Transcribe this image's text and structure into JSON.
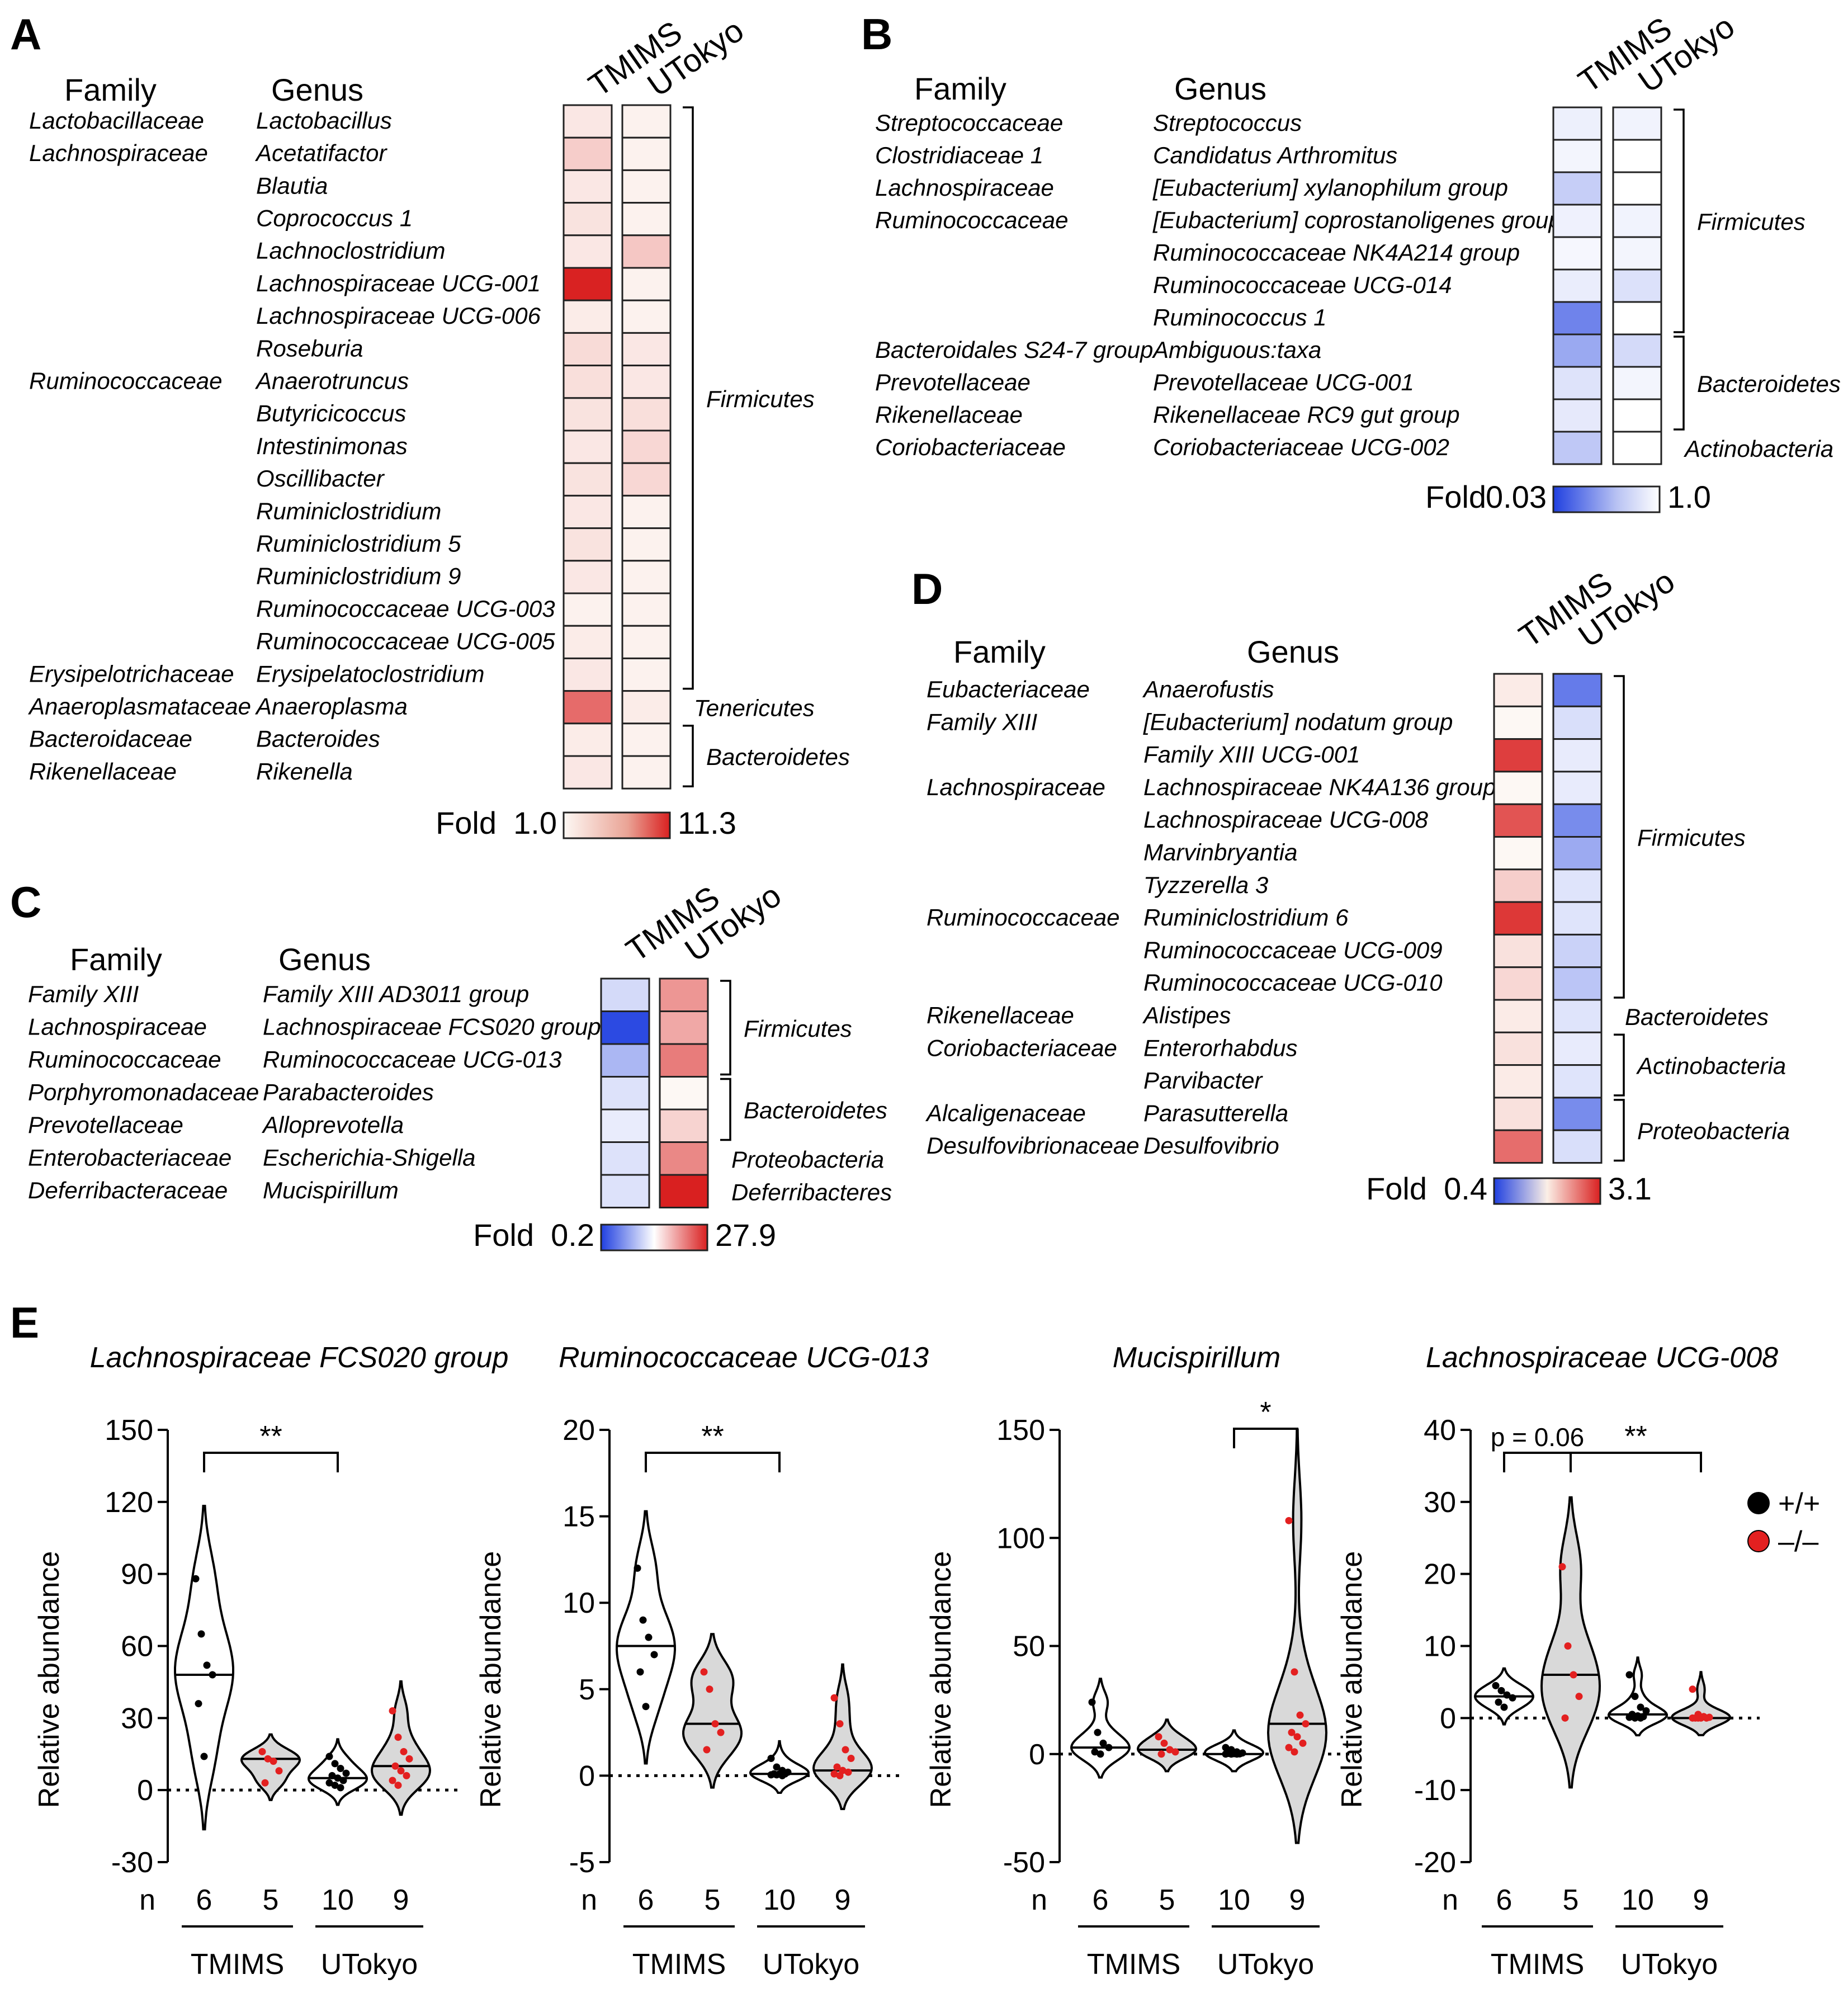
{
  "panels": {
    "A": {
      "letter": "A",
      "family_header": "Family",
      "genus_header": "Genus",
      "columns": [
        "TMIMS",
        "UTokyo"
      ],
      "rows": [
        {
          "family": "Lactobacillaceae",
          "genus": "Lactobacillus",
          "values": [
            1.15,
            1.05
          ]
        },
        {
          "family": "Lachnospiraceae",
          "genus": "Acetatifactor",
          "values": [
            1.5,
            1.05
          ]
        },
        {
          "family": "",
          "genus": "Blautia",
          "values": [
            1.15,
            1.05
          ]
        },
        {
          "family": "",
          "genus": "Coprococcus 1",
          "values": [
            1.2,
            1.05
          ]
        },
        {
          "family": "",
          "genus": "Lachnoclostridium",
          "values": [
            1.15,
            1.6
          ]
        },
        {
          "family": "",
          "genus": "Lachnospiraceae UCG-001",
          "values": [
            11.0,
            1.05
          ]
        },
        {
          "family": "",
          "genus": "Lachnospiraceae UCG-006",
          "values": [
            1.1,
            1.05
          ]
        },
        {
          "family": "",
          "genus": "Roseburia",
          "values": [
            1.3,
            1.15
          ]
        },
        {
          "family": "Ruminococcaceae",
          "genus": "Anaerotruncus",
          "values": [
            1.25,
            1.15
          ]
        },
        {
          "family": "",
          "genus": "Butyricicoccus",
          "values": [
            1.2,
            1.25
          ]
        },
        {
          "family": "",
          "genus": "Intestinimonas",
          "values": [
            1.15,
            1.35
          ]
        },
        {
          "family": "",
          "genus": "Oscillibacter",
          "values": [
            1.2,
            1.35
          ]
        },
        {
          "family": "",
          "genus": "Ruminiclostridium",
          "values": [
            1.15,
            1.05
          ]
        },
        {
          "family": "",
          "genus": "Ruminiclostridium 5",
          "values": [
            1.2,
            1.05
          ]
        },
        {
          "family": "",
          "genus": "Ruminiclostridium 9",
          "values": [
            1.15,
            1.05
          ]
        },
        {
          "family": "",
          "genus": "Ruminococcaceae UCG-003",
          "values": [
            1.05,
            1.05
          ]
        },
        {
          "family": "",
          "genus": "Ruminococcaceae UCG-005",
          "values": [
            1.1,
            1.05
          ]
        },
        {
          "family": "Erysipelotrichaceae",
          "genus": "Erysipelatoclostridium",
          "values": [
            1.15,
            1.05
          ]
        },
        {
          "family": "Anaeroplasmataceae",
          "genus": "Anaeroplasma",
          "values": [
            4.5,
            1.1
          ]
        },
        {
          "family": "Bacteroidaceae",
          "genus": "Bacteroides",
          "values": [
            1.1,
            1.05
          ]
        },
        {
          "family": "Rikenellaceae",
          "genus": "Rikenella",
          "values": [
            1.15,
            1.05
          ]
        }
      ],
      "phyla": [
        "Firmicutes",
        "Tenericutes",
        "Bacteroidetes"
      ],
      "legend": {
        "label": "Fold",
        "min": "1.0",
        "max": "11.3"
      }
    },
    "B": {
      "letter": "B",
      "family_header": "Family",
      "genus_header": "Genus",
      "columns": [
        "TMIMS",
        "UTokyo"
      ],
      "rows": [
        {
          "family": "Streptococcaceae",
          "genus": "Streptococcus",
          "values": [
            0.88,
            0.92
          ]
        },
        {
          "family": "Clostridiaceae 1",
          "genus": "Candidatus Arthromitus",
          "values": [
            0.95,
            1.0
          ]
        },
        {
          "family": "Lachnospiraceae",
          "genus": "[Eubacterium] xylanophilum group",
          "values": [
            0.5,
            1.0
          ]
        },
        {
          "family": "Ruminococcaceae",
          "genus": "[Eubacterium] coprostanoligenes group",
          "values": [
            0.9,
            0.92
          ]
        },
        {
          "family": "",
          "genus": "Ruminococcaceae NK4A214 group",
          "values": [
            0.98,
            0.95
          ]
        },
        {
          "family": "",
          "genus": "Ruminococcaceae UCG-014",
          "values": [
            0.85,
            0.7
          ]
        },
        {
          "family": "",
          "genus": "Ruminococcus 1",
          "values": [
            0.12,
            1.0
          ]
        },
        {
          "family": "Bacteroidales S24-7 group",
          "genus": "Ambiguous:taxa",
          "values": [
            0.25,
            0.62
          ]
        },
        {
          "family": "Prevotellaceae",
          "genus": "Prevotellaceae UCG-001",
          "values": [
            0.72,
            0.95
          ]
        },
        {
          "family": "Rikenellaceae",
          "genus": "Rikenellaceae RC9 gut group",
          "values": [
            0.8,
            1.0
          ]
        },
        {
          "family": "Coriobacteriaceae",
          "genus": "Coriobacteriaceae UCG-002",
          "values": [
            0.45,
            1.0
          ]
        }
      ],
      "phyla": [
        "Firmicutes",
        "Bacteroidetes",
        "Actinobacteria"
      ],
      "legend": {
        "label": "Fold",
        "min": "0.03",
        "max": "1.0"
      }
    },
    "C": {
      "letter": "C",
      "family_header": "Family",
      "genus_header": "Genus",
      "columns": [
        "TMIMS",
        "UTokyo"
      ],
      "rows": [
        {
          "family": "Family XIII",
          "genus": "Family XIII AD3011 group",
          "values": [
            0.8,
            4.0
          ]
        },
        {
          "family": "Lachnospiraceae",
          "genus": "Lachnospiraceae FCS020 group",
          "values": [
            0.22,
            3.0
          ]
        },
        {
          "family": "Ruminococcaceae",
          "genus": "Ruminococcaceae UCG-013",
          "values": [
            0.6,
            6.0
          ]
        },
        {
          "family": "Porphyromonadaceae",
          "genus": "Parabacteroides",
          "values": [
            0.85,
            1.0
          ]
        },
        {
          "family": "Prevotellaceae",
          "genus": "Alloprevotella",
          "values": [
            0.92,
            1.6
          ]
        },
        {
          "family": "Enterobacteriaceae",
          "genus": "Escherichia-Shigella",
          "values": [
            0.85,
            5.0
          ]
        },
        {
          "family": "Deferribacteraceae",
          "genus": "Mucispirillum",
          "values": [
            0.85,
            27.9
          ]
        }
      ],
      "phyla": [
        "Firmicutes",
        "Bacteroidetes",
        "Proteobacteria",
        "Deferribacteres"
      ],
      "legend": {
        "label": "Fold",
        "min": "0.2",
        "max": "27.9"
      }
    },
    "D": {
      "letter": "D",
      "family_header": "Family",
      "genus_header": "Genus",
      "columns": [
        "TMIMS",
        "UTokyo"
      ],
      "rows": [
        {
          "family": "Eubacteriaceae",
          "genus": "Anaerofustis",
          "values": [
            1.05,
            0.55
          ]
        },
        {
          "family": "Family XIII",
          "genus": "[Eubacterium] nodatum group",
          "values": [
            1.0,
            0.9
          ]
        },
        {
          "family": "",
          "genus": "Family XIII UCG-001",
          "values": [
            2.6,
            0.95
          ]
        },
        {
          "family": "Lachnospiraceae",
          "genus": "Lachnospiraceae NK4A136 group",
          "values": [
            1.0,
            0.95
          ]
        },
        {
          "family": "",
          "genus": "Lachnospiraceae UCG-008",
          "values": [
            2.3,
            0.6
          ]
        },
        {
          "family": "",
          "genus": "Marvinbryantia",
          "values": [
            1.0,
            0.7
          ]
        },
        {
          "family": "",
          "genus": "Tyzzerella 3",
          "values": [
            1.2,
            0.92
          ]
        },
        {
          "family": "Ruminococcaceae",
          "genus": "Ruminiclostridium 6",
          "values": [
            2.7,
            0.92
          ]
        },
        {
          "family": "",
          "genus": "Ruminococcaceae UCG-009",
          "values": [
            1.1,
            0.85
          ]
        },
        {
          "family": "",
          "genus": "Ruminococcaceae UCG-010",
          "values": [
            1.15,
            0.8
          ]
        },
        {
          "family": "Rikenellaceae",
          "genus": "Alistipes",
          "values": [
            1.05,
            0.92
          ]
        },
        {
          "family": "Coriobacteriaceae",
          "genus": "Enterorhabdus",
          "values": [
            1.1,
            0.95
          ]
        },
        {
          "family": "",
          "genus": "Parvibacter",
          "values": [
            1.05,
            0.92
          ]
        },
        {
          "family": "Alcaligenaceae",
          "genus": "Parasutterella",
          "values": [
            1.1,
            0.6
          ]
        },
        {
          "family": "Desulfovibrionaceae",
          "genus": "Desulfovibrio",
          "values": [
            2.0,
            0.9
          ]
        }
      ],
      "phyla": [
        "Firmicutes",
        "Bacteroidetes",
        "Actinobacteria",
        "Proteobacteria"
      ],
      "legend": {
        "label": "Fold",
        "min": "0.4",
        "max": "3.1"
      }
    },
    "E": {
      "letter": "E"
    }
  },
  "chart_data": [
    {
      "type": "violin",
      "title": "Lachnospiraceae FCS020 group",
      "ylabel": "Relative abundance",
      "ylim": [
        -30,
        150
      ],
      "yticks": [
        "-30",
        "0",
        "30",
        "60",
        "90",
        "120",
        "150"
      ],
      "n_label": "n",
      "groups": [
        {
          "n": "6",
          "genotype": "+/+",
          "cohort": "TMIMS",
          "median": 48,
          "points": [
            88,
            65,
            52,
            48,
            36,
            14
          ]
        },
        {
          "n": "5",
          "genotype": "-/-",
          "cohort": "TMIMS",
          "median": 13,
          "points": [
            16,
            13,
            12,
            8,
            3
          ]
        },
        {
          "n": "10",
          "genotype": "+/+",
          "cohort": "UTokyo",
          "median": 5,
          "points": [
            14,
            11,
            9,
            7,
            6,
            5,
            4,
            3,
            2,
            1
          ]
        },
        {
          "n": "9",
          "genotype": "-/-",
          "cohort": "UTokyo",
          "median": 10,
          "points": [
            33,
            22,
            16,
            13,
            10,
            8,
            6,
            4,
            2
          ]
        }
      ],
      "cohorts": [
        "TMIMS",
        "UTokyo"
      ],
      "significance": [
        {
          "from": 0,
          "to": 2,
          "label": "**"
        }
      ]
    },
    {
      "type": "violin",
      "title": "Ruminococcaceae UCG-013",
      "ylabel": "Relative abundance",
      "ylim": [
        -5,
        20
      ],
      "yticks": [
        "-5",
        "0",
        "5",
        "10",
        "15",
        "20"
      ],
      "n_label": "n",
      "groups": [
        {
          "n": "6",
          "genotype": "+/+",
          "cohort": "TMIMS",
          "median": 7.5,
          "points": [
            12,
            9,
            8,
            7,
            6,
            4
          ]
        },
        {
          "n": "5",
          "genotype": "-/-",
          "cohort": "TMIMS",
          "median": 3,
          "points": [
            6,
            5,
            3,
            2.5,
            1.5
          ]
        },
        {
          "n": "10",
          "genotype": "+/+",
          "cohort": "UTokyo",
          "median": 0.1,
          "points": [
            1,
            0.5,
            0.3,
            0.2,
            0.1,
            0.1,
            0.1,
            0.05,
            0.05,
            0
          ]
        },
        {
          "n": "9",
          "genotype": "-/-",
          "cohort": "UTokyo",
          "median": 0.3,
          "points": [
            4.5,
            3,
            1.5,
            1,
            0.5,
            0.3,
            0.2,
            0.1,
            0
          ]
        }
      ],
      "cohorts": [
        "TMIMS",
        "UTokyo"
      ],
      "significance": [
        {
          "from": 0,
          "to": 2,
          "label": "**"
        }
      ]
    },
    {
      "type": "violin",
      "title": "Mucispirillum",
      "ylabel": "Relative abundance",
      "ylim": [
        -50,
        150
      ],
      "yticks": [
        "-50",
        "0",
        "50",
        "100",
        "150"
      ],
      "n_label": "n",
      "groups": [
        {
          "n": "6",
          "genotype": "+/+",
          "cohort": "TMIMS",
          "median": 3,
          "points": [
            24,
            10,
            5,
            3,
            1,
            0
          ]
        },
        {
          "n": "5",
          "genotype": "-/-",
          "cohort": "TMIMS",
          "median": 2,
          "points": [
            8,
            5,
            2,
            1,
            0
          ]
        },
        {
          "n": "10",
          "genotype": "+/+",
          "cohort": "UTokyo",
          "median": 0,
          "points": [
            3,
            2,
            1,
            0.5,
            0.3,
            0.2,
            0.1,
            0,
            0,
            0
          ]
        },
        {
          "n": "9",
          "genotype": "-/-",
          "cohort": "UTokyo",
          "median": 14,
          "points": [
            108,
            38,
            18,
            14,
            10,
            8,
            5,
            3,
            1
          ]
        }
      ],
      "cohorts": [
        "TMIMS",
        "UTokyo"
      ],
      "significance": [
        {
          "from": 2,
          "to": 3,
          "label": "*"
        }
      ]
    },
    {
      "type": "violin",
      "title": "Lachnospiraceae UCG-008",
      "ylabel": "Relative abundance",
      "ylim": [
        -20,
        40
      ],
      "yticks": [
        "-20",
        "-10",
        "0",
        "10",
        "20",
        "30",
        "40"
      ],
      "n_label": "n",
      "groups": [
        {
          "n": "6",
          "genotype": "+/+",
          "cohort": "TMIMS",
          "median": 3,
          "points": [
            4.5,
            3.8,
            3.2,
            2.8,
            2.2,
            1.5
          ]
        },
        {
          "n": "5",
          "genotype": "-/-",
          "cohort": "TMIMS",
          "median": 6,
          "points": [
            21,
            10,
            6,
            3,
            0
          ]
        },
        {
          "n": "10",
          "genotype": "+/+",
          "cohort": "UTokyo",
          "median": 0.5,
          "points": [
            6,
            3,
            1.5,
            1,
            0.5,
            0.3,
            0.2,
            0.1,
            0,
            0
          ]
        },
        {
          "n": "9",
          "genotype": "-/-",
          "cohort": "UTokyo",
          "median": 0,
          "points": [
            4,
            0.5,
            0.2,
            0.1,
            0,
            0,
            0,
            0,
            0
          ]
        }
      ],
      "cohorts": [
        "TMIMS",
        "UTokyo"
      ],
      "significance": [
        {
          "from": 0,
          "to": 1,
          "label": "p = 0.06"
        },
        {
          "from": 1,
          "to": 3,
          "label": "**"
        }
      ]
    }
  ],
  "legend_e": [
    {
      "label": "+/+",
      "color": "#000000"
    },
    {
      "label": "–/–",
      "color": "#e32020"
    }
  ],
  "colors": {
    "red": "#d92020",
    "blue": "#2040e0",
    "white": "#ffffff",
    "dot_wt": "#000000",
    "dot_ko": "#e32020",
    "violin_fill": "#d9d9d9"
  }
}
